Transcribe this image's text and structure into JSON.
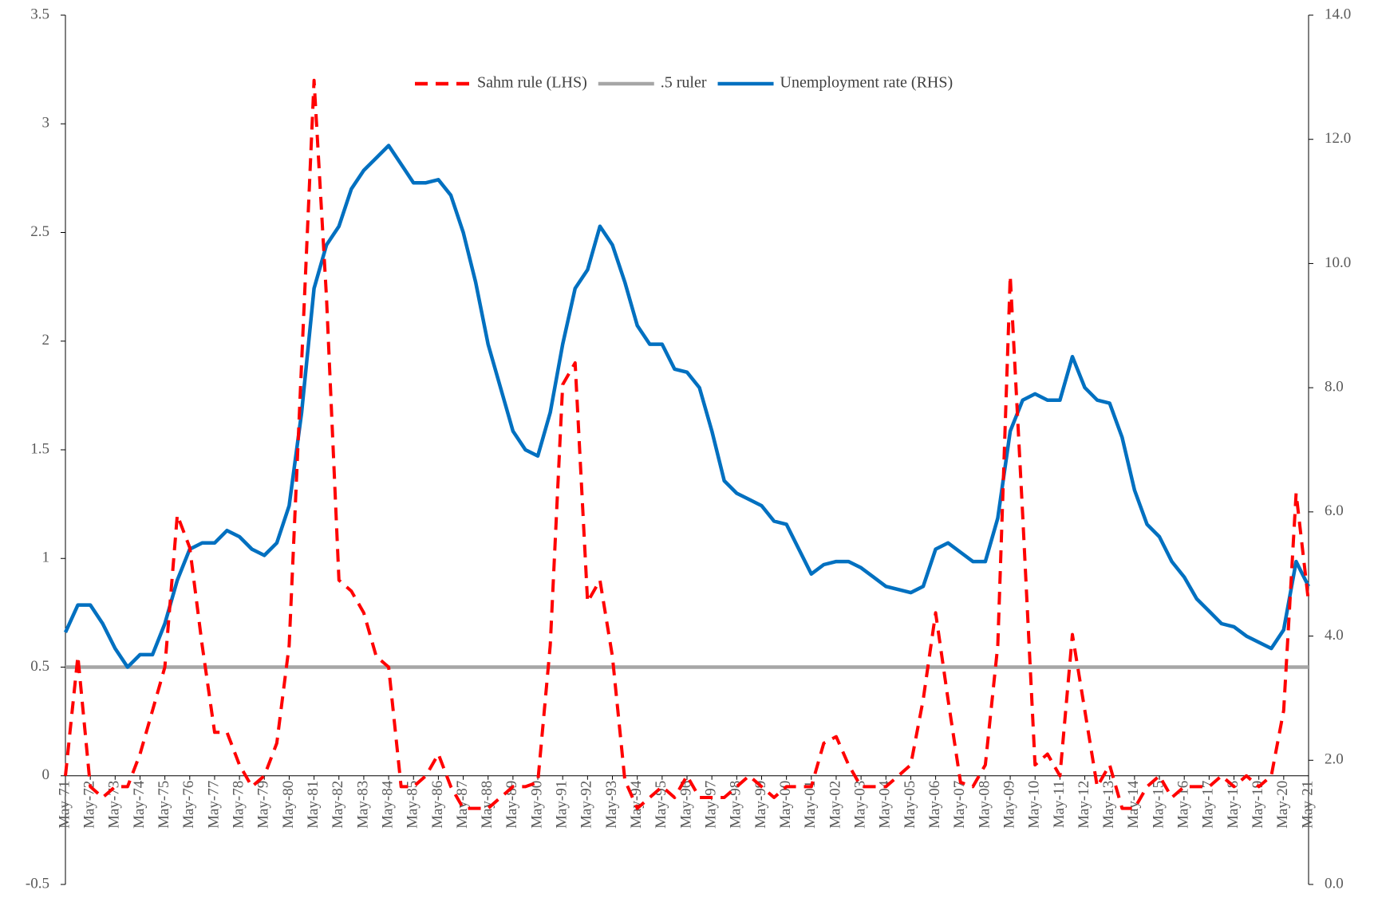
{
  "chart_data": {
    "type": "line",
    "categories": [
      "May-71",
      null,
      "May-72",
      null,
      "May-73",
      null,
      "May-74",
      null,
      "May-75",
      null,
      "May-76",
      null,
      "May-77",
      null,
      "May-78",
      null,
      "May-79",
      null,
      "May-80",
      null,
      "May-81",
      null,
      "May-82",
      null,
      "May-83",
      null,
      "May-84",
      null,
      "May-85",
      null,
      "May-86",
      null,
      "May-87",
      null,
      "May-88",
      null,
      "May-89",
      null,
      "May-90",
      null,
      "May-91",
      null,
      "May-92",
      null,
      "May-93",
      null,
      "May-94",
      null,
      "May-95",
      null,
      "May-96",
      null,
      "May-97",
      null,
      "May-98",
      null,
      "May-99",
      null,
      "May-00",
      null,
      "May-01",
      null,
      "May-02",
      null,
      "May-03",
      null,
      "May-04",
      null,
      "May-05",
      null,
      "May-06",
      null,
      "May-07",
      null,
      "May-08",
      null,
      "May-09",
      null,
      "May-10",
      null,
      "May-11",
      null,
      "May-12",
      null,
      "May-13",
      null,
      "May-14",
      null,
      "May-15",
      null,
      "May-16",
      null,
      "May-17",
      null,
      "May-18",
      null,
      "May-19",
      null,
      "May-20",
      null,
      "May-21"
    ],
    "series": [
      {
        "name": "Sahm rule (LHS)",
        "color": "#ff0000",
        "dashed": true,
        "axis": "y",
        "values": [
          0,
          0.55,
          -0.05,
          -0.1,
          -0.05,
          -0.05,
          0.1,
          0.3,
          0.5,
          1.2,
          1.05,
          0.6,
          0.2,
          0.2,
          0.05,
          -0.05,
          0,
          0.15,
          0.6,
          1.9,
          3.2,
          2.2,
          0.9,
          0.85,
          0.75,
          0.55,
          0.5,
          -0.05,
          -0.05,
          0,
          0.1,
          -0.05,
          -0.15,
          -0.15,
          -0.15,
          -0.1,
          -0.05,
          -0.05,
          -0.03,
          0.6,
          1.8,
          1.9,
          0.8,
          0.9,
          0.55,
          -0.02,
          -0.15,
          -0.1,
          -0.05,
          -0.1,
          0,
          -0.1,
          -0.1,
          -0.1,
          -0.05,
          0,
          -0.05,
          -0.1,
          -0.05,
          -0.05,
          -0.05,
          0.15,
          0.18,
          0.05,
          -0.05,
          -0.05,
          -0.05,
          0,
          0.05,
          0.35,
          0.75,
          0.35,
          -0.03,
          -0.05,
          0.05,
          0.6,
          2.3,
          1.2,
          0.05,
          0.1,
          0,
          0.65,
          0.3,
          -0.05,
          0.05,
          -0.15,
          -0.15,
          -0.05,
          0,
          -0.1,
          -0.05,
          -0.05,
          -0.05,
          0,
          -0.05,
          0,
          -0.05,
          0,
          0.3,
          1.3,
          0.8
        ]
      },
      {
        "name": ".5 ruler",
        "color": "#a6a6a6",
        "dashed": false,
        "axis": "y",
        "values": [
          0.5,
          0.5,
          0.5,
          0.5,
          0.5,
          0.5,
          0.5,
          0.5,
          0.5,
          0.5,
          0.5,
          0.5,
          0.5,
          0.5,
          0.5,
          0.5,
          0.5,
          0.5,
          0.5,
          0.5,
          0.5,
          0.5,
          0.5,
          0.5,
          0.5,
          0.5,
          0.5,
          0.5,
          0.5,
          0.5,
          0.5,
          0.5,
          0.5,
          0.5,
          0.5,
          0.5,
          0.5,
          0.5,
          0.5,
          0.5,
          0.5,
          0.5,
          0.5,
          0.5,
          0.5,
          0.5,
          0.5,
          0.5,
          0.5,
          0.5,
          0.5,
          0.5,
          0.5,
          0.5,
          0.5,
          0.5,
          0.5,
          0.5,
          0.5,
          0.5,
          0.5,
          0.5,
          0.5,
          0.5,
          0.5,
          0.5,
          0.5,
          0.5,
          0.5,
          0.5,
          0.5,
          0.5,
          0.5,
          0.5,
          0.5,
          0.5,
          0.5,
          0.5,
          0.5,
          0.5,
          0.5,
          0.5,
          0.5,
          0.5,
          0.5,
          0.5,
          0.5,
          0.5,
          0.5,
          0.5,
          0.5,
          0.5,
          0.5,
          0.5,
          0.5,
          0.5,
          0.5,
          0.5,
          0.5,
          0.5,
          0.5
        ]
      },
      {
        "name": "Unemployment rate (RHS)",
        "color": "#0070c0",
        "dashed": false,
        "axis": "y2",
        "values": [
          4.06,
          4.5,
          4.5,
          4.2,
          3.8,
          3.5,
          3.7,
          3.7,
          4.2,
          4.9,
          5.4,
          5.5,
          5.5,
          5.7,
          5.6,
          5.4,
          5.3,
          5.5,
          6.1,
          7.6,
          9.6,
          10.3,
          10.6,
          11.2,
          11.5,
          11.7,
          11.9,
          11.6,
          11.3,
          11.3,
          11.35,
          11.1,
          10.5,
          9.7,
          8.7,
          8.0,
          7.3,
          7.0,
          6.9,
          7.6,
          8.7,
          9.6,
          9.9,
          10.6,
          10.3,
          9.7,
          9.0,
          8.7,
          8.7,
          8.3,
          8.25,
          8.0,
          7.3,
          6.5,
          6.3,
          6.2,
          6.1,
          5.85,
          5.8,
          5.4,
          5.0,
          5.15,
          5.2,
          5.2,
          5.1,
          4.95,
          4.8,
          4.75,
          4.7,
          4.8,
          5.4,
          5.5,
          5.35,
          5.2,
          5.2,
          5.9,
          7.3,
          7.8,
          7.9,
          7.8,
          7.8,
          8.5,
          8.0,
          7.8,
          7.75,
          7.2,
          6.35,
          5.8,
          5.6,
          5.2,
          4.95,
          4.6,
          4.4,
          4.2,
          4.15,
          4.0,
          3.9,
          3.8,
          4.1,
          5.2,
          4.8
        ]
      }
    ],
    "ylim": [
      -0.5,
      3.5
    ],
    "yticks": [
      -0.5,
      0,
      0.5,
      1,
      1.5,
      2,
      2.5,
      3,
      3.5
    ],
    "y2lim": [
      0,
      14
    ],
    "y2ticks": [
      {
        "value": 0,
        "label": "0.0"
      },
      {
        "value": 2,
        "label": "2.0"
      },
      {
        "value": 4,
        "label": "4.0"
      },
      {
        "value": 6,
        "label": "6.0"
      },
      {
        "value": 8,
        "label": "8.0"
      },
      {
        "value": 10,
        "label": "10.0"
      },
      {
        "value": 12,
        "label": "12.0"
      },
      {
        "value": 14,
        "label": "14.0"
      }
    ],
    "grid": false,
    "legend": "top"
  }
}
